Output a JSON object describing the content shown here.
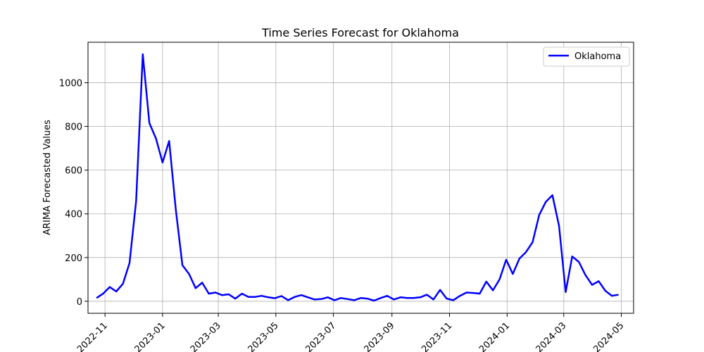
{
  "chart_data": {
    "type": "line",
    "title": "Time Series Forecast for Oklahoma",
    "xlabel": "",
    "ylabel": "ARIMA Forecasted Values",
    "grid": true,
    "legend_position": "top-right",
    "x_ticks": [
      "2022-11",
      "2023-01",
      "2023-03",
      "2023-05",
      "2023-07",
      "2023-09",
      "2023-11",
      "2024-01",
      "2024-03",
      "2024-05"
    ],
    "y_ticks": [
      0,
      200,
      400,
      600,
      800,
      1000
    ],
    "xlim": [
      "2022-10-14",
      "2024-05-14"
    ],
    "ylim": [
      -55,
      1185
    ],
    "series": [
      {
        "name": "Oklahoma",
        "color": "#0000ff",
        "x": [
          "2022-10-23",
          "2022-10-30",
          "2022-11-06",
          "2022-11-13",
          "2022-11-20",
          "2022-11-27",
          "2022-12-04",
          "2022-12-11",
          "2022-12-18",
          "2022-12-25",
          "2023-01-01",
          "2023-01-08",
          "2023-01-15",
          "2023-01-22",
          "2023-01-29",
          "2023-02-05",
          "2023-02-12",
          "2023-02-19",
          "2023-02-26",
          "2023-03-05",
          "2023-03-12",
          "2023-03-19",
          "2023-03-26",
          "2023-04-02",
          "2023-04-09",
          "2023-04-16",
          "2023-04-23",
          "2023-04-30",
          "2023-05-07",
          "2023-05-14",
          "2023-05-21",
          "2023-05-28",
          "2023-06-04",
          "2023-06-11",
          "2023-06-18",
          "2023-06-25",
          "2023-07-02",
          "2023-07-09",
          "2023-07-16",
          "2023-07-23",
          "2023-07-30",
          "2023-08-06",
          "2023-08-13",
          "2023-08-20",
          "2023-08-27",
          "2023-09-03",
          "2023-09-10",
          "2023-09-17",
          "2023-09-24",
          "2023-10-01",
          "2023-10-08",
          "2023-10-15",
          "2023-10-22",
          "2023-10-29",
          "2023-11-05",
          "2023-11-12",
          "2023-11-19",
          "2023-11-26",
          "2023-12-03",
          "2023-12-10",
          "2023-12-17",
          "2023-12-24",
          "2023-12-31",
          "2024-01-07",
          "2024-01-14",
          "2024-01-21",
          "2024-01-28",
          "2024-02-04",
          "2024-02-11",
          "2024-02-18",
          "2024-02-25",
          "2024-03-03",
          "2024-03-10",
          "2024-03-17",
          "2024-03-24",
          "2024-03-31",
          "2024-04-07",
          "2024-04-14",
          "2024-04-21",
          "2024-04-28"
        ],
        "y": [
          15,
          35,
          65,
          45,
          80,
          175,
          460,
          1130,
          815,
          745,
          635,
          733,
          420,
          165,
          125,
          60,
          85,
          35,
          40,
          28,
          32,
          12,
          35,
          20,
          20,
          25,
          18,
          14,
          24,
          5,
          20,
          28,
          18,
          8,
          10,
          18,
          5,
          15,
          10,
          5,
          15,
          12,
          3,
          15,
          25,
          8,
          18,
          15,
          15,
          18,
          30,
          8,
          52,
          12,
          5,
          25,
          40,
          38,
          35,
          90,
          50,
          100,
          190,
          125,
          195,
          225,
          270,
          395,
          455,
          485,
          345,
          42,
          205,
          180,
          120,
          75,
          92,
          48,
          25,
          30
        ]
      }
    ]
  }
}
